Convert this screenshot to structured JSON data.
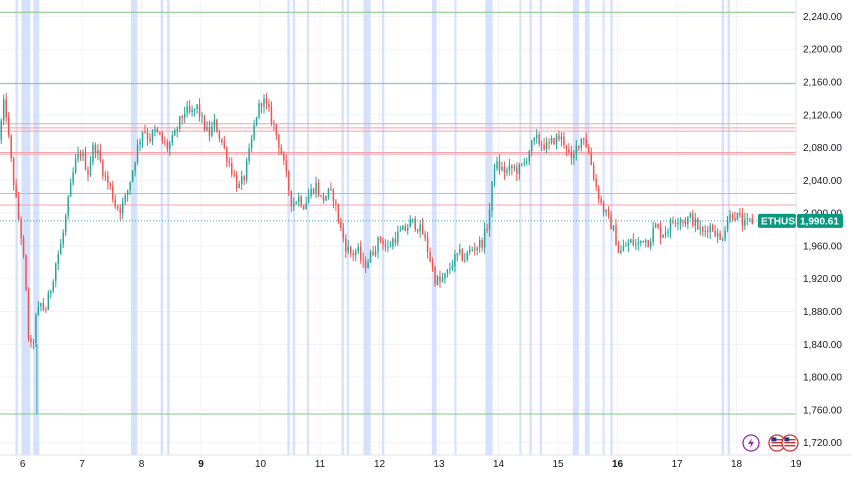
{
  "chart_data": {
    "type": "candlestick",
    "symbol": "ETHUSD",
    "last_price": 1990.61,
    "last_price_label": "1,990.61",
    "ylim": [
      1705,
      2260
    ],
    "x_range_days": [
      5.62,
      19.0
    ],
    "y_ticks": [
      {
        "value": 2240,
        "label": "2,240.00"
      },
      {
        "value": 2200,
        "label": "2,200.00"
      },
      {
        "value": 2160,
        "label": "2,160.00"
      },
      {
        "value": 2120,
        "label": "2,120.00"
      },
      {
        "value": 2080,
        "label": "2,080.00"
      },
      {
        "value": 2040,
        "label": "2,040.00"
      },
      {
        "value": 2000,
        "label": "2,000.00"
      },
      {
        "value": 1960,
        "label": "1,960.00"
      },
      {
        "value": 1920,
        "label": "1,920.00"
      },
      {
        "value": 1880,
        "label": "1,880.00"
      },
      {
        "value": 1840,
        "label": "1,840.00"
      },
      {
        "value": 1800,
        "label": "1,800.00"
      },
      {
        "value": 1760,
        "label": "1,760.00"
      },
      {
        "value": 1720,
        "label": "1,720.00"
      }
    ],
    "x_ticks": [
      {
        "day": 6,
        "label": "6",
        "major": false
      },
      {
        "day": 7,
        "label": "7",
        "major": false
      },
      {
        "day": 8,
        "label": "8",
        "major": false
      },
      {
        "day": 9,
        "label": "9",
        "major": true
      },
      {
        "day": 10,
        "label": "10",
        "major": false
      },
      {
        "day": 11,
        "label": "11",
        "major": false
      },
      {
        "day": 12,
        "label": "12",
        "major": false
      },
      {
        "day": 13,
        "label": "13",
        "major": false
      },
      {
        "day": 14,
        "label": "14",
        "major": false
      },
      {
        "day": 15,
        "label": "15",
        "major": false
      },
      {
        "day": 16,
        "label": "16",
        "major": true
      },
      {
        "day": 17,
        "label": "17",
        "major": false
      },
      {
        "day": 18,
        "label": "18",
        "major": false
      },
      {
        "day": 19,
        "label": "19",
        "major": false
      }
    ],
    "horizontal_levels": [
      {
        "value": 2245,
        "color": "#81c784"
      },
      {
        "value": 2158,
        "color": "#81c784"
      },
      {
        "value": 2109,
        "color": "#f7a1a8"
      },
      {
        "value": 2104,
        "color": "#f7a1a8"
      },
      {
        "value": 2100,
        "color": "#f7a1a8"
      },
      {
        "value": 2074,
        "color": "#f7a1a8"
      },
      {
        "value": 2072,
        "color": "#f7a1a8"
      },
      {
        "value": 2024,
        "color": "#f7a1a8"
      },
      {
        "value": 2010,
        "color": "#f7a1a8"
      },
      {
        "value": 1755,
        "color": "#81c784"
      }
    ],
    "highlight_bands_days": [
      [
        5.88,
        5.92
      ],
      [
        5.98,
        6.13
      ],
      [
        6.18,
        6.28
      ],
      [
        7.82,
        7.93
      ],
      [
        8.32,
        8.36
      ],
      [
        8.43,
        8.47
      ],
      [
        10.45,
        10.49
      ],
      [
        10.54,
        10.58
      ],
      [
        10.78,
        10.81
      ],
      [
        11.36,
        11.4
      ],
      [
        11.45,
        11.48
      ],
      [
        11.73,
        11.85
      ],
      [
        12.04,
        12.08
      ],
      [
        12.88,
        12.96
      ],
      [
        13.26,
        13.29
      ],
      [
        13.78,
        13.9
      ],
      [
        14.35,
        14.38
      ],
      [
        14.52,
        14.56
      ],
      [
        14.69,
        14.73
      ],
      [
        15.25,
        15.35
      ],
      [
        15.45,
        15.53
      ],
      [
        15.75,
        15.78
      ],
      [
        15.88,
        15.92
      ],
      [
        17.75,
        17.79
      ],
      [
        17.85,
        17.89
      ]
    ],
    "price_path": [
      [
        5.62,
        2090
      ],
      [
        5.72,
        2140
      ],
      [
        5.8,
        2080
      ],
      [
        5.9,
        2020
      ],
      [
        5.96,
        1990
      ],
      [
        6.02,
        1960
      ],
      [
        6.08,
        1900
      ],
      [
        6.12,
        1850
      ],
      [
        6.18,
        1830
      ],
      [
        6.24,
        1870
      ],
      [
        6.32,
        1890
      ],
      [
        6.4,
        1880
      ],
      [
        6.5,
        1910
      ],
      [
        6.58,
        1940
      ],
      [
        6.68,
        1965
      ],
      [
        6.8,
        2020
      ],
      [
        6.9,
        2060
      ],
      [
        7.0,
        2075
      ],
      [
        7.12,
        2050
      ],
      [
        7.22,
        2085
      ],
      [
        7.3,
        2070
      ],
      [
        7.4,
        2045
      ],
      [
        7.5,
        2030
      ],
      [
        7.58,
        2010
      ],
      [
        7.66,
        2005
      ],
      [
        7.76,
        2020
      ],
      [
        7.86,
        2050
      ],
      [
        7.95,
        2080
      ],
      [
        8.05,
        2105
      ],
      [
        8.15,
        2090
      ],
      [
        8.25,
        2100
      ],
      [
        8.35,
        2090
      ],
      [
        8.45,
        2080
      ],
      [
        8.55,
        2090
      ],
      [
        8.65,
        2110
      ],
      [
        8.75,
        2125
      ],
      [
        8.85,
        2120
      ],
      [
        8.95,
        2130
      ],
      [
        9.05,
        2110
      ],
      [
        9.15,
        2095
      ],
      [
        9.25,
        2110
      ],
      [
        9.35,
        2090
      ],
      [
        9.45,
        2070
      ],
      [
        9.55,
        2050
      ],
      [
        9.65,
        2030
      ],
      [
        9.75,
        2045
      ],
      [
        9.85,
        2080
      ],
      [
        9.95,
        2120
      ],
      [
        10.05,
        2140
      ],
      [
        10.15,
        2125
      ],
      [
        10.25,
        2105
      ],
      [
        10.35,
        2080
      ],
      [
        10.45,
        2045
      ],
      [
        10.55,
        2010
      ],
      [
        10.65,
        2020
      ],
      [
        10.75,
        2010
      ],
      [
        10.85,
        2025
      ],
      [
        10.95,
        2035
      ],
      [
        11.05,
        2015
      ],
      [
        11.15,
        2025
      ],
      [
        11.25,
        2020
      ],
      [
        11.35,
        1985
      ],
      [
        11.45,
        1960
      ],
      [
        11.55,
        1950
      ],
      [
        11.65,
        1955
      ],
      [
        11.75,
        1935
      ],
      [
        11.85,
        1945
      ],
      [
        11.95,
        1960
      ],
      [
        12.05,
        1970
      ],
      [
        12.15,
        1955
      ],
      [
        12.25,
        1968
      ],
      [
        12.35,
        1975
      ],
      [
        12.45,
        1980
      ],
      [
        12.55,
        1990
      ],
      [
        12.65,
        1985
      ],
      [
        12.75,
        1975
      ],
      [
        12.85,
        1950
      ],
      [
        12.95,
        1920
      ],
      [
        13.05,
        1915
      ],
      [
        13.15,
        1925
      ],
      [
        13.25,
        1940
      ],
      [
        13.35,
        1950
      ],
      [
        13.45,
        1945
      ],
      [
        13.55,
        1955
      ],
      [
        13.65,
        1960
      ],
      [
        13.75,
        1965
      ],
      [
        13.85,
        1990
      ],
      [
        13.95,
        2060
      ],
      [
        14.05,
        2055
      ],
      [
        14.15,
        2050
      ],
      [
        14.25,
        2055
      ],
      [
        14.35,
        2052
      ],
      [
        14.45,
        2060
      ],
      [
        14.55,
        2080
      ],
      [
        14.65,
        2090
      ],
      [
        14.75,
        2085
      ],
      [
        14.85,
        2080
      ],
      [
        14.95,
        2090
      ],
      [
        15.05,
        2092
      ],
      [
        15.15,
        2085
      ],
      [
        15.25,
        2060
      ],
      [
        15.35,
        2085
      ],
      [
        15.45,
        2095
      ],
      [
        15.55,
        2070
      ],
      [
        15.65,
        2035
      ],
      [
        15.75,
        2010
      ],
      [
        15.85,
        1995
      ],
      [
        15.95,
        1980
      ],
      [
        16.05,
        1950
      ],
      [
        16.15,
        1960
      ],
      [
        16.25,
        1965
      ],
      [
        16.35,
        1960
      ],
      [
        16.45,
        1970
      ],
      [
        16.55,
        1965
      ],
      [
        16.65,
        1985
      ],
      [
        16.75,
        1975
      ],
      [
        16.85,
        1980
      ],
      [
        16.95,
        1990
      ],
      [
        17.05,
        1995
      ],
      [
        17.15,
        1990
      ],
      [
        17.25,
        1995
      ],
      [
        17.35,
        1985
      ],
      [
        17.45,
        1975
      ],
      [
        17.55,
        1985
      ],
      [
        17.65,
        1980
      ],
      [
        17.75,
        1965
      ],
      [
        17.85,
        1990
      ],
      [
        17.95,
        2000
      ],
      [
        18.05,
        1995
      ],
      [
        18.15,
        1985
      ],
      [
        18.25,
        1990
      ]
    ],
    "up_color": "#26a69a",
    "down_color": "#ef5350",
    "grid_color": "#f0f3fa",
    "band_color": "#cfdcfb",
    "tag_color": "#089981",
    "last_price_line_color": "#26a69a"
  },
  "icons": {
    "lightning": "lightning-icon",
    "flag": "us-flag-icon"
  }
}
